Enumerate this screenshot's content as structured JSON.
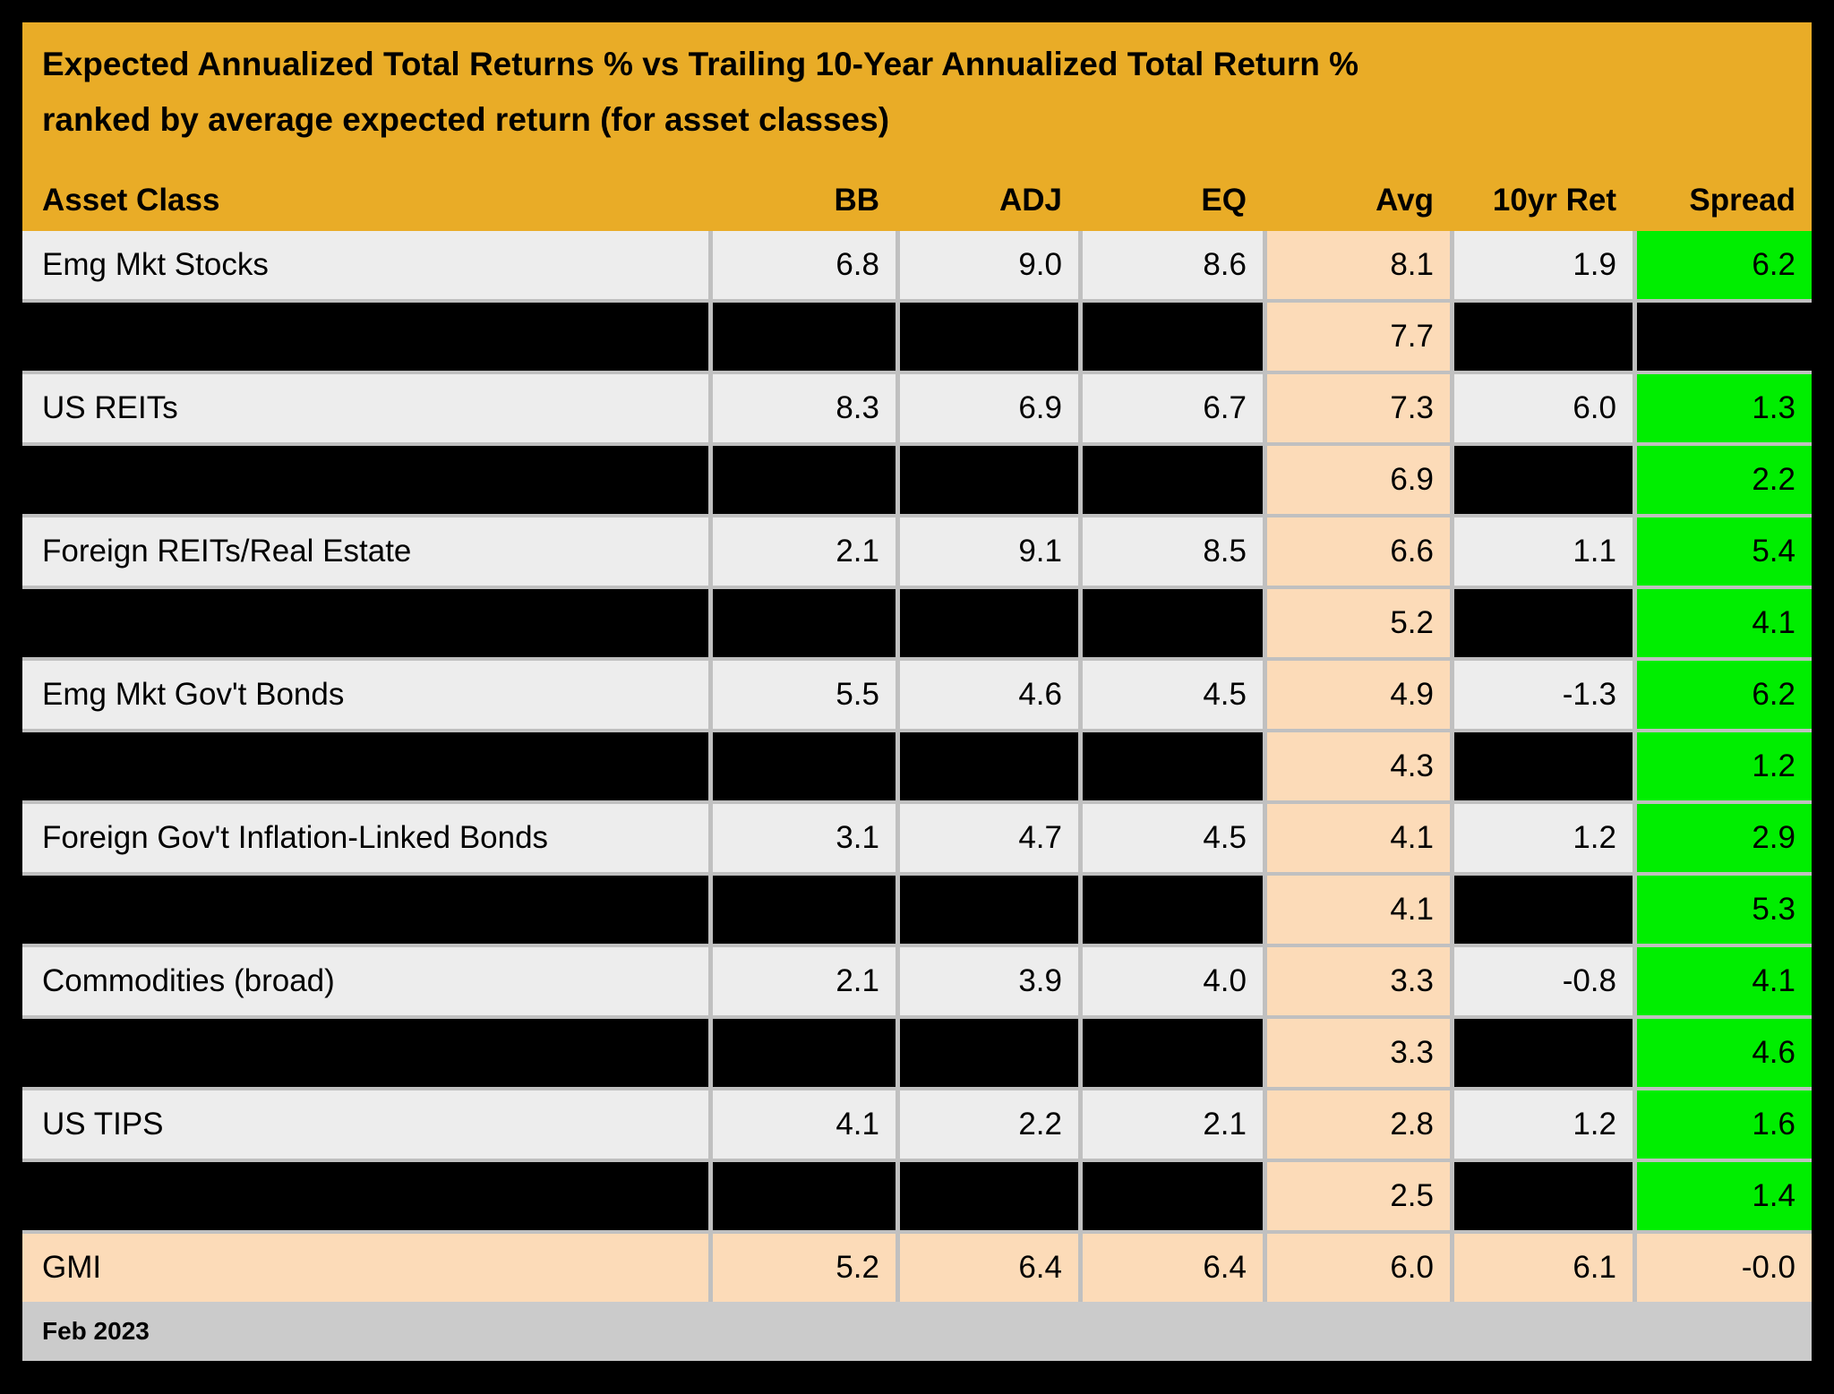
{
  "title": {
    "line1": "Expected Annualized Total Returns % vs Trailing 10-Year Annualized Total Return %",
    "line2": "ranked by average expected return (for asset classes)"
  },
  "footer": {
    "date": "Feb 2023"
  },
  "colors": {
    "header_orange": "#E9AC27",
    "row_gray": "#EDEDED",
    "gridline_gray": "#C0C0C0",
    "avg_peach": "#FCDBB8",
    "spread_green": "#00EE00",
    "redacted_black": "#000000",
    "footer_gray": "#CBCBCB"
  },
  "chart_data": {
    "type": "table",
    "title": "Expected Annualized Total Returns % vs Trailing 10-Year Annualized Total Return % ranked by average expected return (for asset classes)",
    "columns": [
      "Asset Class",
      "BB",
      "ADJ",
      "EQ",
      "Avg",
      "10yr Ret",
      "Spread"
    ],
    "rows": [
      {
        "type": "data",
        "asset": "Emg Mkt Stocks",
        "bb": "6.8",
        "adj": "9.0",
        "eq": "8.6",
        "avg": "8.1",
        "ret10": "1.9",
        "spread": "6.2",
        "spread_style": "green"
      },
      {
        "type": "redacted",
        "asset": "",
        "bb": "",
        "adj": "",
        "eq": "",
        "avg": "7.7",
        "ret10": "",
        "spread": "",
        "spread_style": "black"
      },
      {
        "type": "data",
        "asset": "US REITs",
        "bb": "8.3",
        "adj": "6.9",
        "eq": "6.7",
        "avg": "7.3",
        "ret10": "6.0",
        "spread": "1.3",
        "spread_style": "green"
      },
      {
        "type": "redacted",
        "asset": "",
        "bb": "",
        "adj": "",
        "eq": "",
        "avg": "6.9",
        "ret10": "",
        "spread": "2.2",
        "spread_style": "green"
      },
      {
        "type": "data",
        "asset": "Foreign REITs/Real Estate",
        "bb": "2.1",
        "adj": "9.1",
        "eq": "8.5",
        "avg": "6.6",
        "ret10": "1.1",
        "spread": "5.4",
        "spread_style": "green"
      },
      {
        "type": "redacted",
        "asset": "",
        "bb": "",
        "adj": "",
        "eq": "",
        "avg": "5.2",
        "ret10": "",
        "spread": "4.1",
        "spread_style": "green"
      },
      {
        "type": "data",
        "asset": "Emg Mkt Gov't Bonds",
        "bb": "5.5",
        "adj": "4.6",
        "eq": "4.5",
        "avg": "4.9",
        "ret10": "-1.3",
        "spread": "6.2",
        "spread_style": "green"
      },
      {
        "type": "redacted",
        "asset": "",
        "bb": "",
        "adj": "",
        "eq": "",
        "avg": "4.3",
        "ret10": "",
        "spread": "1.2",
        "spread_style": "green"
      },
      {
        "type": "data",
        "asset": "Foreign Gov't Inflation-Linked Bonds",
        "bb": "3.1",
        "adj": "4.7",
        "eq": "4.5",
        "avg": "4.1",
        "ret10": "1.2",
        "spread": "2.9",
        "spread_style": "green"
      },
      {
        "type": "redacted",
        "asset": "",
        "bb": "",
        "adj": "",
        "eq": "",
        "avg": "4.1",
        "ret10": "",
        "spread": "5.3",
        "spread_style": "green"
      },
      {
        "type": "data",
        "asset": "Commodities (broad)",
        "bb": "2.1",
        "adj": "3.9",
        "eq": "4.0",
        "avg": "3.3",
        "ret10": "-0.8",
        "spread": "4.1",
        "spread_style": "green"
      },
      {
        "type": "redacted",
        "asset": "",
        "bb": "",
        "adj": "",
        "eq": "",
        "avg": "3.3",
        "ret10": "",
        "spread": "4.6",
        "spread_style": "green"
      },
      {
        "type": "data",
        "asset": "US TIPS",
        "bb": "4.1",
        "adj": "2.2",
        "eq": "2.1",
        "avg": "2.8",
        "ret10": "1.2",
        "spread": "1.6",
        "spread_style": "green"
      },
      {
        "type": "redacted",
        "asset": "",
        "bb": "",
        "adj": "",
        "eq": "",
        "avg": "2.5",
        "ret10": "",
        "spread": "1.4",
        "spread_style": "green"
      },
      {
        "type": "gmi",
        "asset": "GMI",
        "bb": "5.2",
        "adj": "6.4",
        "eq": "6.4",
        "avg": "6.0",
        "ret10": "6.1",
        "spread": "-0.0",
        "spread_style": "peach"
      }
    ]
  }
}
